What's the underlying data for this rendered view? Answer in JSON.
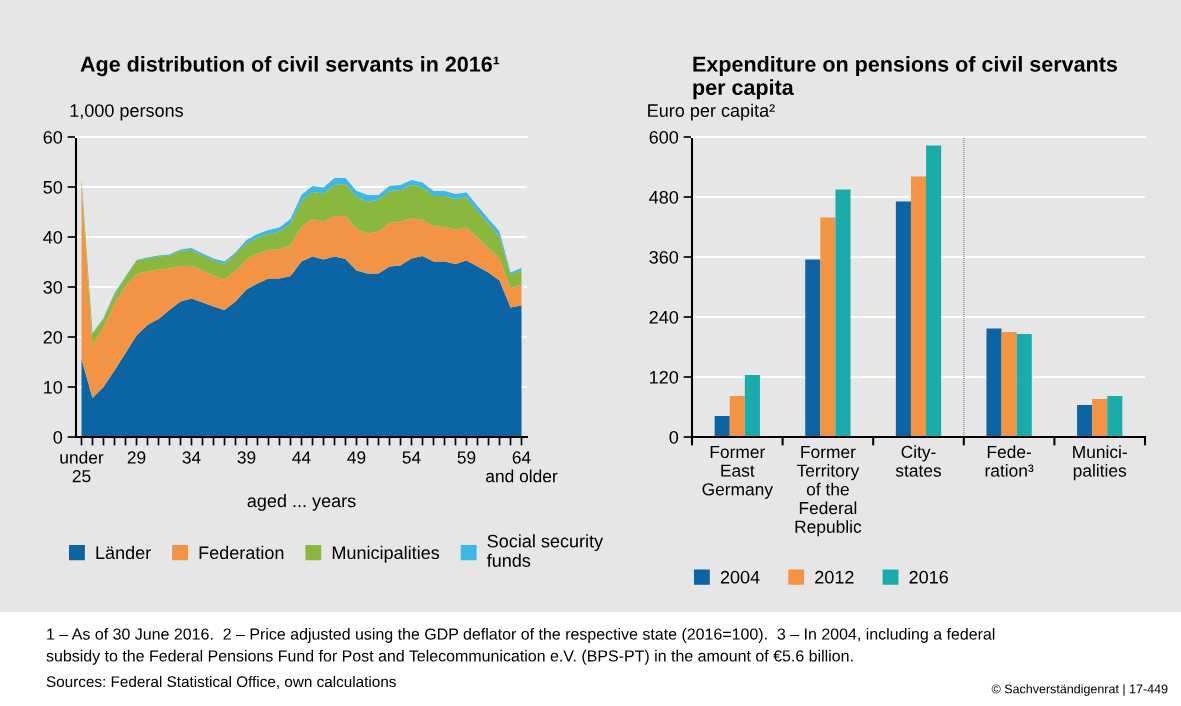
{
  "chart_data": [
    {
      "type": "area",
      "stacked": true,
      "title": "Age distribution of civil servants in 2016¹",
      "ylabel": "1,000 persons",
      "xlabel": "aged ... years",
      "x": [
        24,
        25,
        26,
        27,
        28,
        29,
        30,
        31,
        32,
        33,
        34,
        35,
        36,
        37,
        38,
        39,
        40,
        41,
        42,
        43,
        44,
        45,
        46,
        47,
        48,
        49,
        50,
        51,
        52,
        53,
        54,
        55,
        56,
        57,
        58,
        59,
        60,
        61,
        62,
        63,
        64
      ],
      "xlim": [
        23.5,
        64.5
      ],
      "xticks": [
        {
          "value": 24,
          "label": "under\n25"
        },
        29,
        34,
        39,
        44,
        49,
        54,
        59,
        {
          "value": 64,
          "label": "64\nand older"
        },
        {
          "value": 25,
          "label": null
        },
        {
          "value": 26,
          "label": null
        },
        {
          "value": 27,
          "label": null
        },
        {
          "value": 28,
          "label": null
        },
        {
          "value": 30,
          "label": null
        },
        {
          "value": 31,
          "label": null
        },
        {
          "value": 32,
          "label": null
        },
        {
          "value": 33,
          "label": null
        },
        {
          "value": 35,
          "label": null
        },
        {
          "value": 36,
          "label": null
        },
        {
          "value": 37,
          "label": null
        },
        {
          "value": 38,
          "label": null
        },
        {
          "value": 40,
          "label": null
        },
        {
          "value": 41,
          "label": null
        },
        {
          "value": 42,
          "label": null
        },
        {
          "value": 43,
          "label": null
        },
        {
          "value": 45,
          "label": null
        },
        {
          "value": 46,
          "label": null
        },
        {
          "value": 47,
          "label": null
        },
        {
          "value": 48,
          "label": null
        },
        {
          "value": 50,
          "label": null
        },
        {
          "value": 51,
          "label": null
        },
        {
          "value": 52,
          "label": null
        },
        {
          "value": 53,
          "label": null
        },
        {
          "value": 55,
          "label": null
        },
        {
          "value": 56,
          "label": null
        },
        {
          "value": 57,
          "label": null
        },
        {
          "value": 58,
          "label": null
        },
        {
          "value": 60,
          "label": null
        },
        {
          "value": 61,
          "label": null
        },
        {
          "value": 62,
          "label": null
        },
        {
          "value": 63,
          "label": null
        }
      ],
      "ylim": [
        0,
        60
      ],
      "yticks": [
        0,
        10,
        20,
        30,
        40,
        50,
        60
      ],
      "grid": "y",
      "legend": "bottom",
      "series": [
        {
          "name": "Länder",
          "color": "#0b64a4",
          "values": [
            15.6,
            7.8,
            10.0,
            13.3,
            16.8,
            20.3,
            22.4,
            23.6,
            25.4,
            27.1,
            27.7,
            26.9,
            26.1,
            25.4,
            27.1,
            29.5,
            30.7,
            31.7,
            31.7,
            32.2,
            35.1,
            36.1,
            35.5,
            36.1,
            35.6,
            33.3,
            32.7,
            32.7,
            34.1,
            34.3,
            35.7,
            36.2,
            35.1,
            35.1,
            34.6,
            35.3,
            34.1,
            32.9,
            31.3,
            25.9,
            26.3
          ]
        },
        {
          "name": "Federation",
          "color": "#f39444",
          "values": [
            34.4,
            10.5,
            12.0,
            13.3,
            13.3,
            12.3,
            10.7,
            9.9,
            8.3,
            7.1,
            6.5,
            6.4,
            6.2,
            6.1,
            6.2,
            6.1,
            6.0,
            5.7,
            5.9,
            6.1,
            7.0,
            7.5,
            7.5,
            8.1,
            8.6,
            8.3,
            8.0,
            8.4,
            8.7,
            8.8,
            8.1,
            7.2,
            7.1,
            6.9,
            6.9,
            6.6,
            5.8,
            4.9,
            4.4,
            3.8,
            4.2
          ]
        },
        {
          "name": "Municipalities",
          "color": "#8ab83f",
          "values": [
            1.5,
            2.3,
            1.6,
            2.0,
            1.8,
            2.7,
            2.6,
            2.6,
            2.6,
            3.1,
            3.2,
            3.0,
            3.0,
            3.1,
            3.3,
            3.1,
            3.2,
            3.2,
            3.5,
            4.3,
            5.1,
            5.4,
            5.7,
            6.2,
            6.4,
            6.4,
            6.4,
            6.3,
            6.4,
            6.3,
            6.6,
            6.5,
            6.0,
            6.2,
            6.1,
            6.0,
            5.3,
            4.9,
            4.4,
            2.8,
            2.8
          ]
        },
        {
          "name": "Social security\nfunds",
          "color": "#3bb7e8",
          "values": [
            0.1,
            0.2,
            0.2,
            0.2,
            0.2,
            0.1,
            0.2,
            0.2,
            0.2,
            0.2,
            0.4,
            0.4,
            0.4,
            0.5,
            0.3,
            0.7,
            0.7,
            0.8,
            0.8,
            1.0,
            1.2,
            1.2,
            1.2,
            1.4,
            1.2,
            1.2,
            1.3,
            1.0,
            1.0,
            1.0,
            1.0,
            1.0,
            1.0,
            1.0,
            1.0,
            1.0,
            1.0,
            0.9,
            1.0,
            0.4,
            0.5
          ]
        }
      ],
      "annotations": [
        "1 – As of 30 June 2016.  2 – Price adjusted using the GDP deflator of the respective state (2016=100).  3 – In 2004, including a federal\nsubsidy to the Federal Pensions Fund for Post and Telecommunication e.V. (BPS-PT) in the amount of €5.6 billion.",
        "Sources: Federal Statistical Office, own calculations",
        "© Sachverständigenrat | 17-449"
      ]
    },
    {
      "type": "bar",
      "title": "Expenditure on pensions of civil servants\nper capita",
      "ylabel": "Euro per capita²",
      "categories": [
        "Former\nEast\nGermany",
        "Former\nTerritory\nof the\nFederal\nRepublic",
        "City-\nstates",
        "Fede-\nration³",
        "Munici-\npalities"
      ],
      "ylim": [
        0,
        600
      ],
      "yticks": [
        0,
        120,
        240,
        360,
        480,
        600
      ],
      "grid": "y",
      "legend": "bottom",
      "series": [
        {
          "name": "2004",
          "color": "#0b64a4",
          "values": [
            42,
            355,
            471,
            217,
            64
          ]
        },
        {
          "name": "2012",
          "color": "#f39444",
          "values": [
            82,
            439,
            521,
            210,
            76
          ]
        },
        {
          "name": "2016",
          "color": "#1aabab",
          "values": [
            124,
            495,
            583,
            206,
            82
          ]
        }
      ]
    }
  ]
}
